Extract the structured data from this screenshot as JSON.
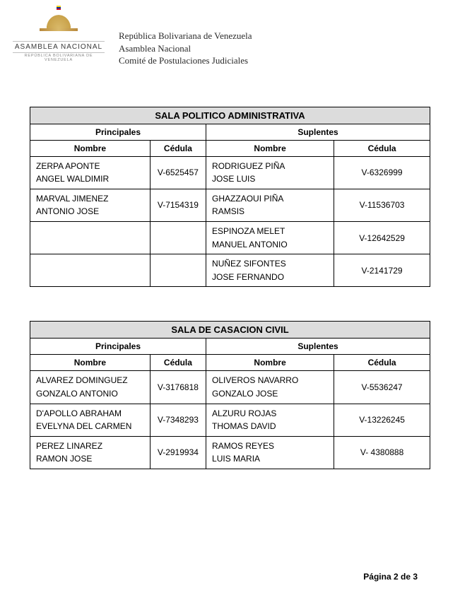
{
  "header": {
    "logo_title": "ASAMBLEA  NACIONAL",
    "logo_subtitle": "REPÚBLICA BOLIVARIANA DE VENEZUELA",
    "flag_colors": [
      "#f9d616",
      "#0033a0",
      "#cf142b"
    ],
    "line1": "República Bolivariana de Venezuela",
    "line2": "Asamblea Nacional",
    "line3": "Comité de Postulaciones Judiciales"
  },
  "labels": {
    "principales": "Principales",
    "suplentes": "Suplentes",
    "nombre": "Nombre",
    "cedula": "Cédula"
  },
  "tables": [
    {
      "title": "SALA POLITICO ADMINISTRATIVA",
      "col_widths": [
        "30%",
        "14%",
        "32%",
        "24%"
      ],
      "rows": [
        {
          "p_line1": "ZERPA APONTE",
          "p_line2": "ANGEL WALDIMIR",
          "p_ced": "V-6525457",
          "s_line1": "RODRIGUEZ PIÑA",
          "s_line2": "JOSE LUIS",
          "s_ced": "V-6326999"
        },
        {
          "p_line1": "MARVAL JIMENEZ",
          "p_line2": "ANTONIO JOSE",
          "p_ced": "V-7154319",
          "s_line1": "GHAZZAOUI PIÑA",
          "s_line2": "RAMSIS",
          "s_ced": "V-11536703"
        },
        {
          "p_line1": "",
          "p_line2": "",
          "p_ced": "",
          "s_line1": "ESPINOZA MELET",
          "s_line2": "MANUEL ANTONIO",
          "s_ced": "V-12642529",
          "empty_left": true
        },
        {
          "p_line1": "",
          "p_line2": "",
          "p_ced": "",
          "s_line1": "NUÑEZ SIFONTES",
          "s_line2": "JOSE FERNANDO",
          "s_ced": "V-2141729",
          "empty_left": true
        }
      ]
    },
    {
      "title": "SALA DE CASACION CIVIL",
      "col_widths": [
        "30%",
        "14%",
        "32%",
        "24%"
      ],
      "rows": [
        {
          "p_line1": "ALVAREZ DOMINGUEZ",
          "p_line2": "GONZALO ANTONIO",
          "p_ced": "V-3176818",
          "s_line1": "OLIVEROS NAVARRO",
          "s_line2": "GONZALO JOSE",
          "s_ced": "V-5536247"
        },
        {
          "p_line1": "D'APOLLO ABRAHAM",
          "p_line2": "EVELYNA DEL CARMEN",
          "p_ced": "V-7348293",
          "s_line1": "ALZURU ROJAS",
          "s_line2": "THOMAS DAVID",
          "s_ced": "V-13226245"
        },
        {
          "p_line1": "PEREZ LINAREZ",
          "p_line2": "RAMON JOSE",
          "p_ced": "V-2919934",
          "s_line1": "RAMOS REYES",
          "s_line2": "LUIS MARIA",
          "s_ced": "V- 4380888"
        }
      ]
    }
  ],
  "footer": "Página 2 de 3"
}
